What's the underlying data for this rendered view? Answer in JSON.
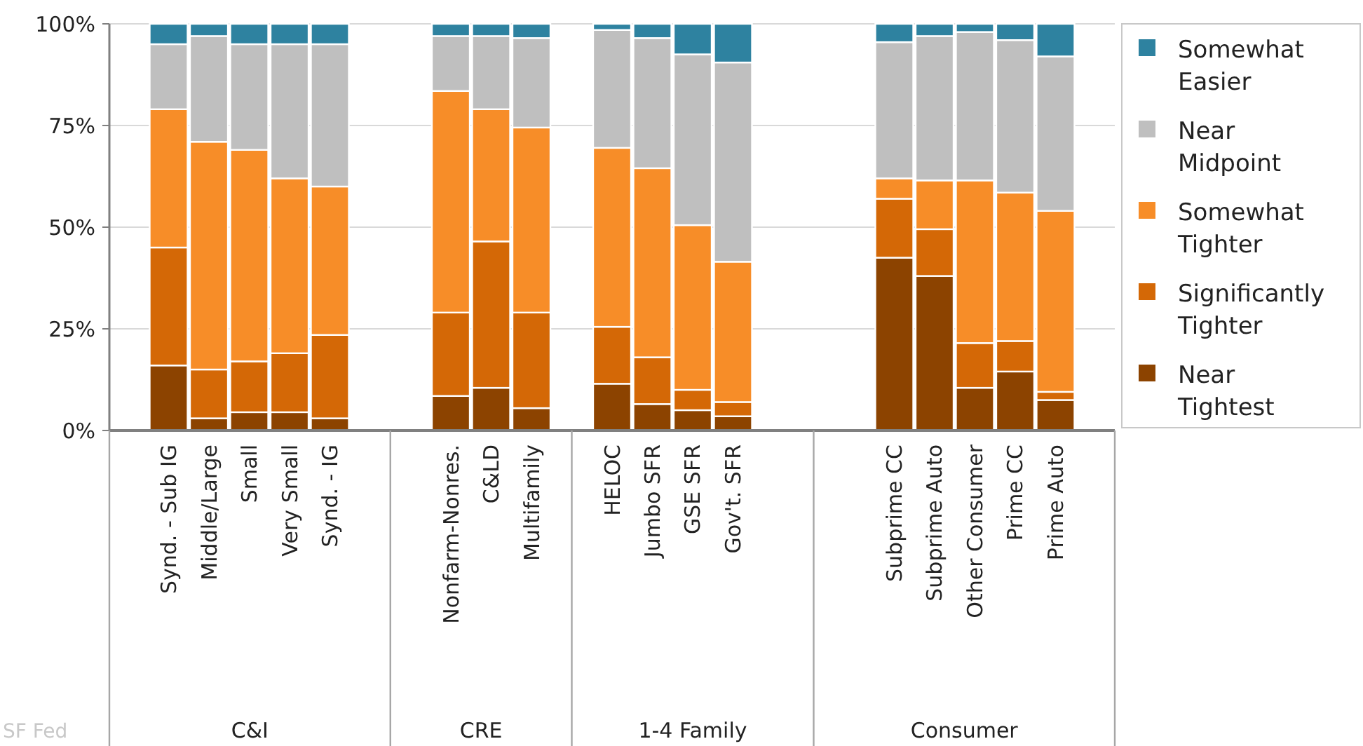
{
  "chart_data": {
    "type": "bar",
    "stacked": true,
    "categories": [
      null,
      "Synd. - Sub IG",
      "Middle/Large",
      "Small",
      "Very Small",
      "Synd. - IG",
      null,
      null,
      "Nonfarm-Nonres.",
      "C&LD",
      "Multifamily",
      null,
      "HELOC",
      "Jumbo SFR",
      "GSE SFR",
      "Gov't. SFR",
      null,
      null,
      null,
      "Subprime CC",
      "Subprime Auto",
      "Other Consumer",
      "Prime CC",
      "Prime Auto",
      null
    ],
    "series": [
      {
        "name": "Near Tightest",
        "color": "#8c4300",
        "values": [
          null,
          16,
          3,
          4.5,
          4.5,
          3,
          null,
          null,
          8.5,
          10.5,
          5.5,
          null,
          11.5,
          6.5,
          5,
          3.5,
          null,
          null,
          null,
          42.5,
          38,
          10.5,
          14.5,
          7.5,
          null
        ]
      },
      {
        "name": "Significantly Tighter",
        "color": "#d46806",
        "values": [
          null,
          29,
          12,
          12.5,
          14.5,
          20.5,
          null,
          null,
          20.5,
          36,
          23.5,
          null,
          14,
          11.5,
          5,
          3.5,
          null,
          null,
          null,
          14.5,
          11.5,
          11,
          7.5,
          2,
          null
        ]
      },
      {
        "name": "Somewhat Tighter",
        "color": "#f78d28",
        "values": [
          null,
          34,
          56,
          52,
          43,
          36.5,
          null,
          null,
          54.5,
          32.5,
          45.5,
          null,
          44,
          46.5,
          40.5,
          34.5,
          null,
          null,
          null,
          5,
          12,
          40,
          36.5,
          44.5,
          null
        ]
      },
      {
        "name": "Near Midpoint",
        "color": "#bfbfbf",
        "values": [
          null,
          16,
          26,
          26,
          33,
          35,
          null,
          null,
          13.5,
          18,
          22,
          null,
          29,
          32,
          42,
          49,
          null,
          null,
          null,
          33.5,
          35.5,
          36.5,
          37.5,
          38,
          null
        ]
      },
      {
        "name": "Somewhat Easier",
        "color": "#2e82a0",
        "values": [
          null,
          5,
          3,
          5,
          5,
          5,
          null,
          null,
          3,
          3,
          3.5,
          null,
          1.5,
          3.5,
          7.5,
          9.5,
          null,
          null,
          null,
          4.5,
          3,
          2,
          4,
          8,
          null
        ]
      }
    ],
    "ylim": [
      0,
      100
    ],
    "yticks": [
      {
        "value": 0,
        "label": "0%"
      },
      {
        "value": 25,
        "label": "25%"
      },
      {
        "value": 50,
        "label": "50%"
      },
      {
        "value": 75,
        "label": "75%"
      },
      {
        "value": 100,
        "label": "100%"
      }
    ],
    "grid": "y",
    "legend": "right",
    "annotations": [
      "C&I",
      "CRE",
      "1-4 Family",
      "Consumer",
      "SF Fed"
    ]
  }
}
